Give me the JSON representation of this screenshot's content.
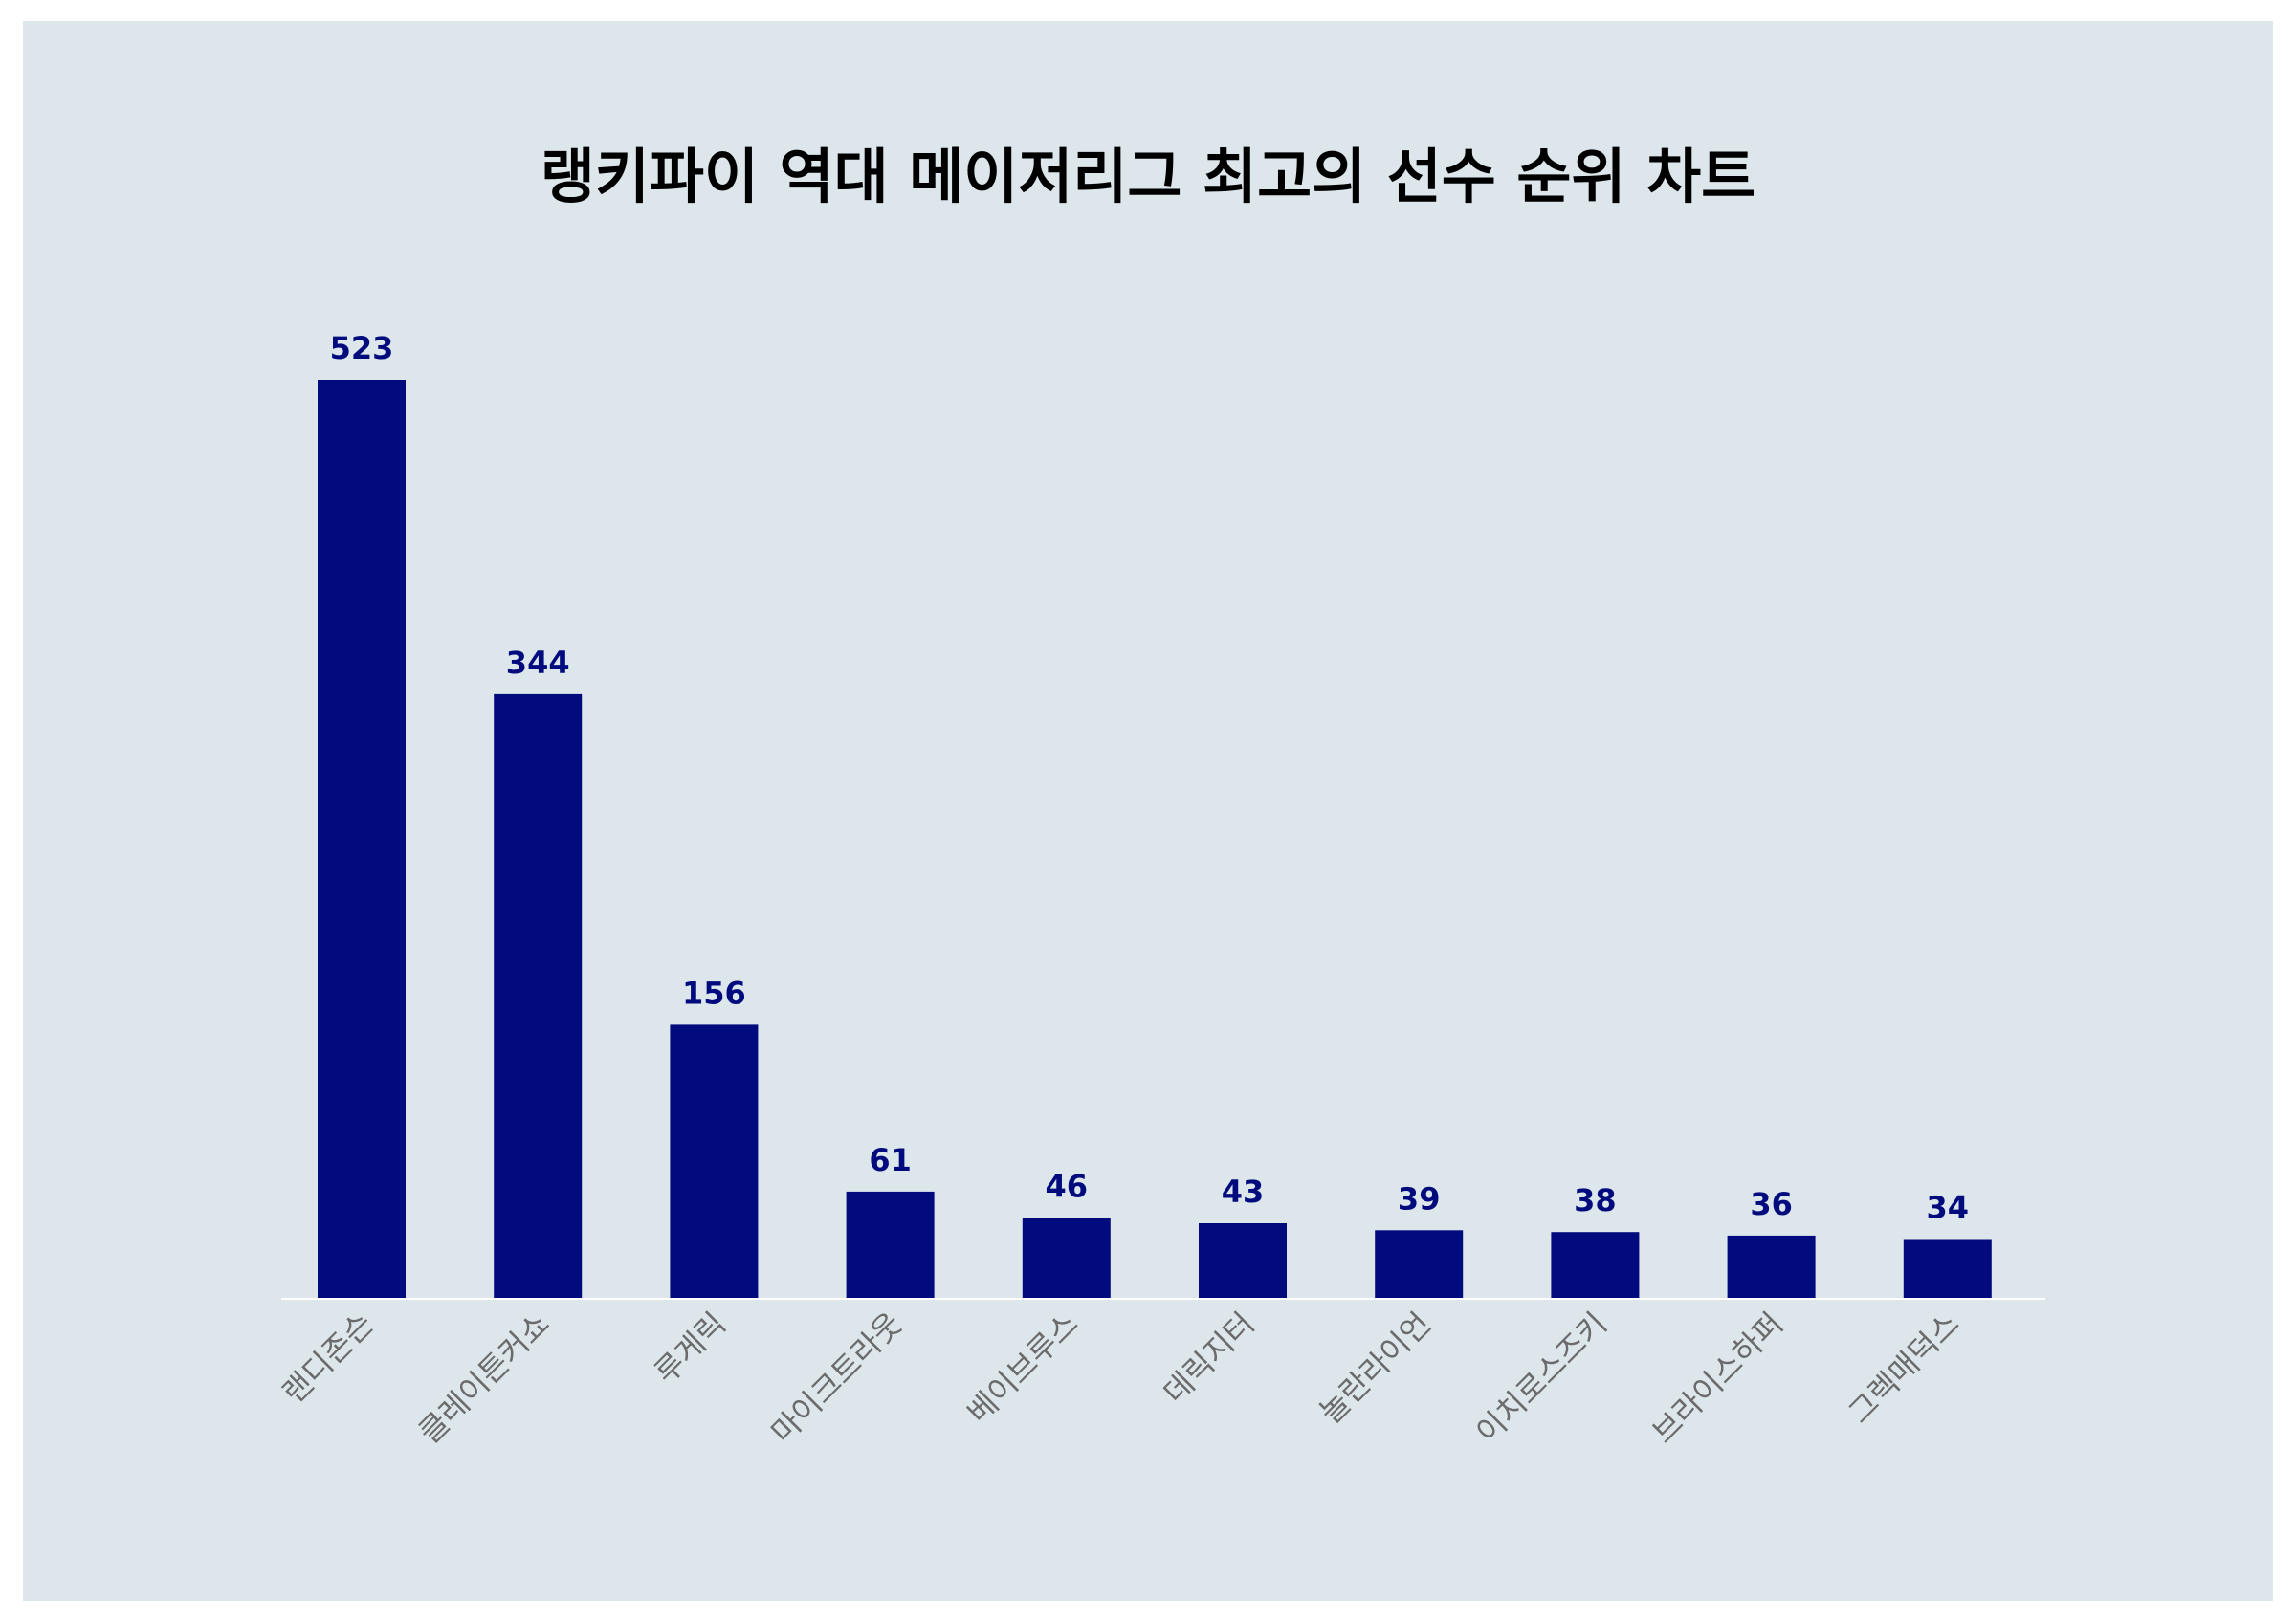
{
  "chart_data": {
    "type": "bar",
    "title": "랭키파이 역대 메이저리그 최고의 선수 순위 차트",
    "categories": [
      "랜디존슨",
      "클레이튼커쇼",
      "루게릭",
      "마이크트라웃",
      "베이브루스",
      "데릭지터",
      "놀란라이언",
      "이치로스즈키",
      "브라이스하퍼",
      "그렉매덕스"
    ],
    "values": [
      523,
      344,
      156,
      61,
      46,
      43,
      39,
      38,
      36,
      34
    ],
    "xlabel": "",
    "ylabel": "",
    "ylim": [
      0,
      523
    ],
    "grid": false,
    "legend": "none",
    "data_labels": true,
    "tick_rotation": -45
  },
  "colors": {
    "bar": "#020b7d",
    "value_label": "#020b7d",
    "panel_background": "#dce6eb",
    "page_background": "#ffffff",
    "baseline": "#ffffff",
    "tick_label": "#6b6b6b",
    "title": "#000000"
  }
}
